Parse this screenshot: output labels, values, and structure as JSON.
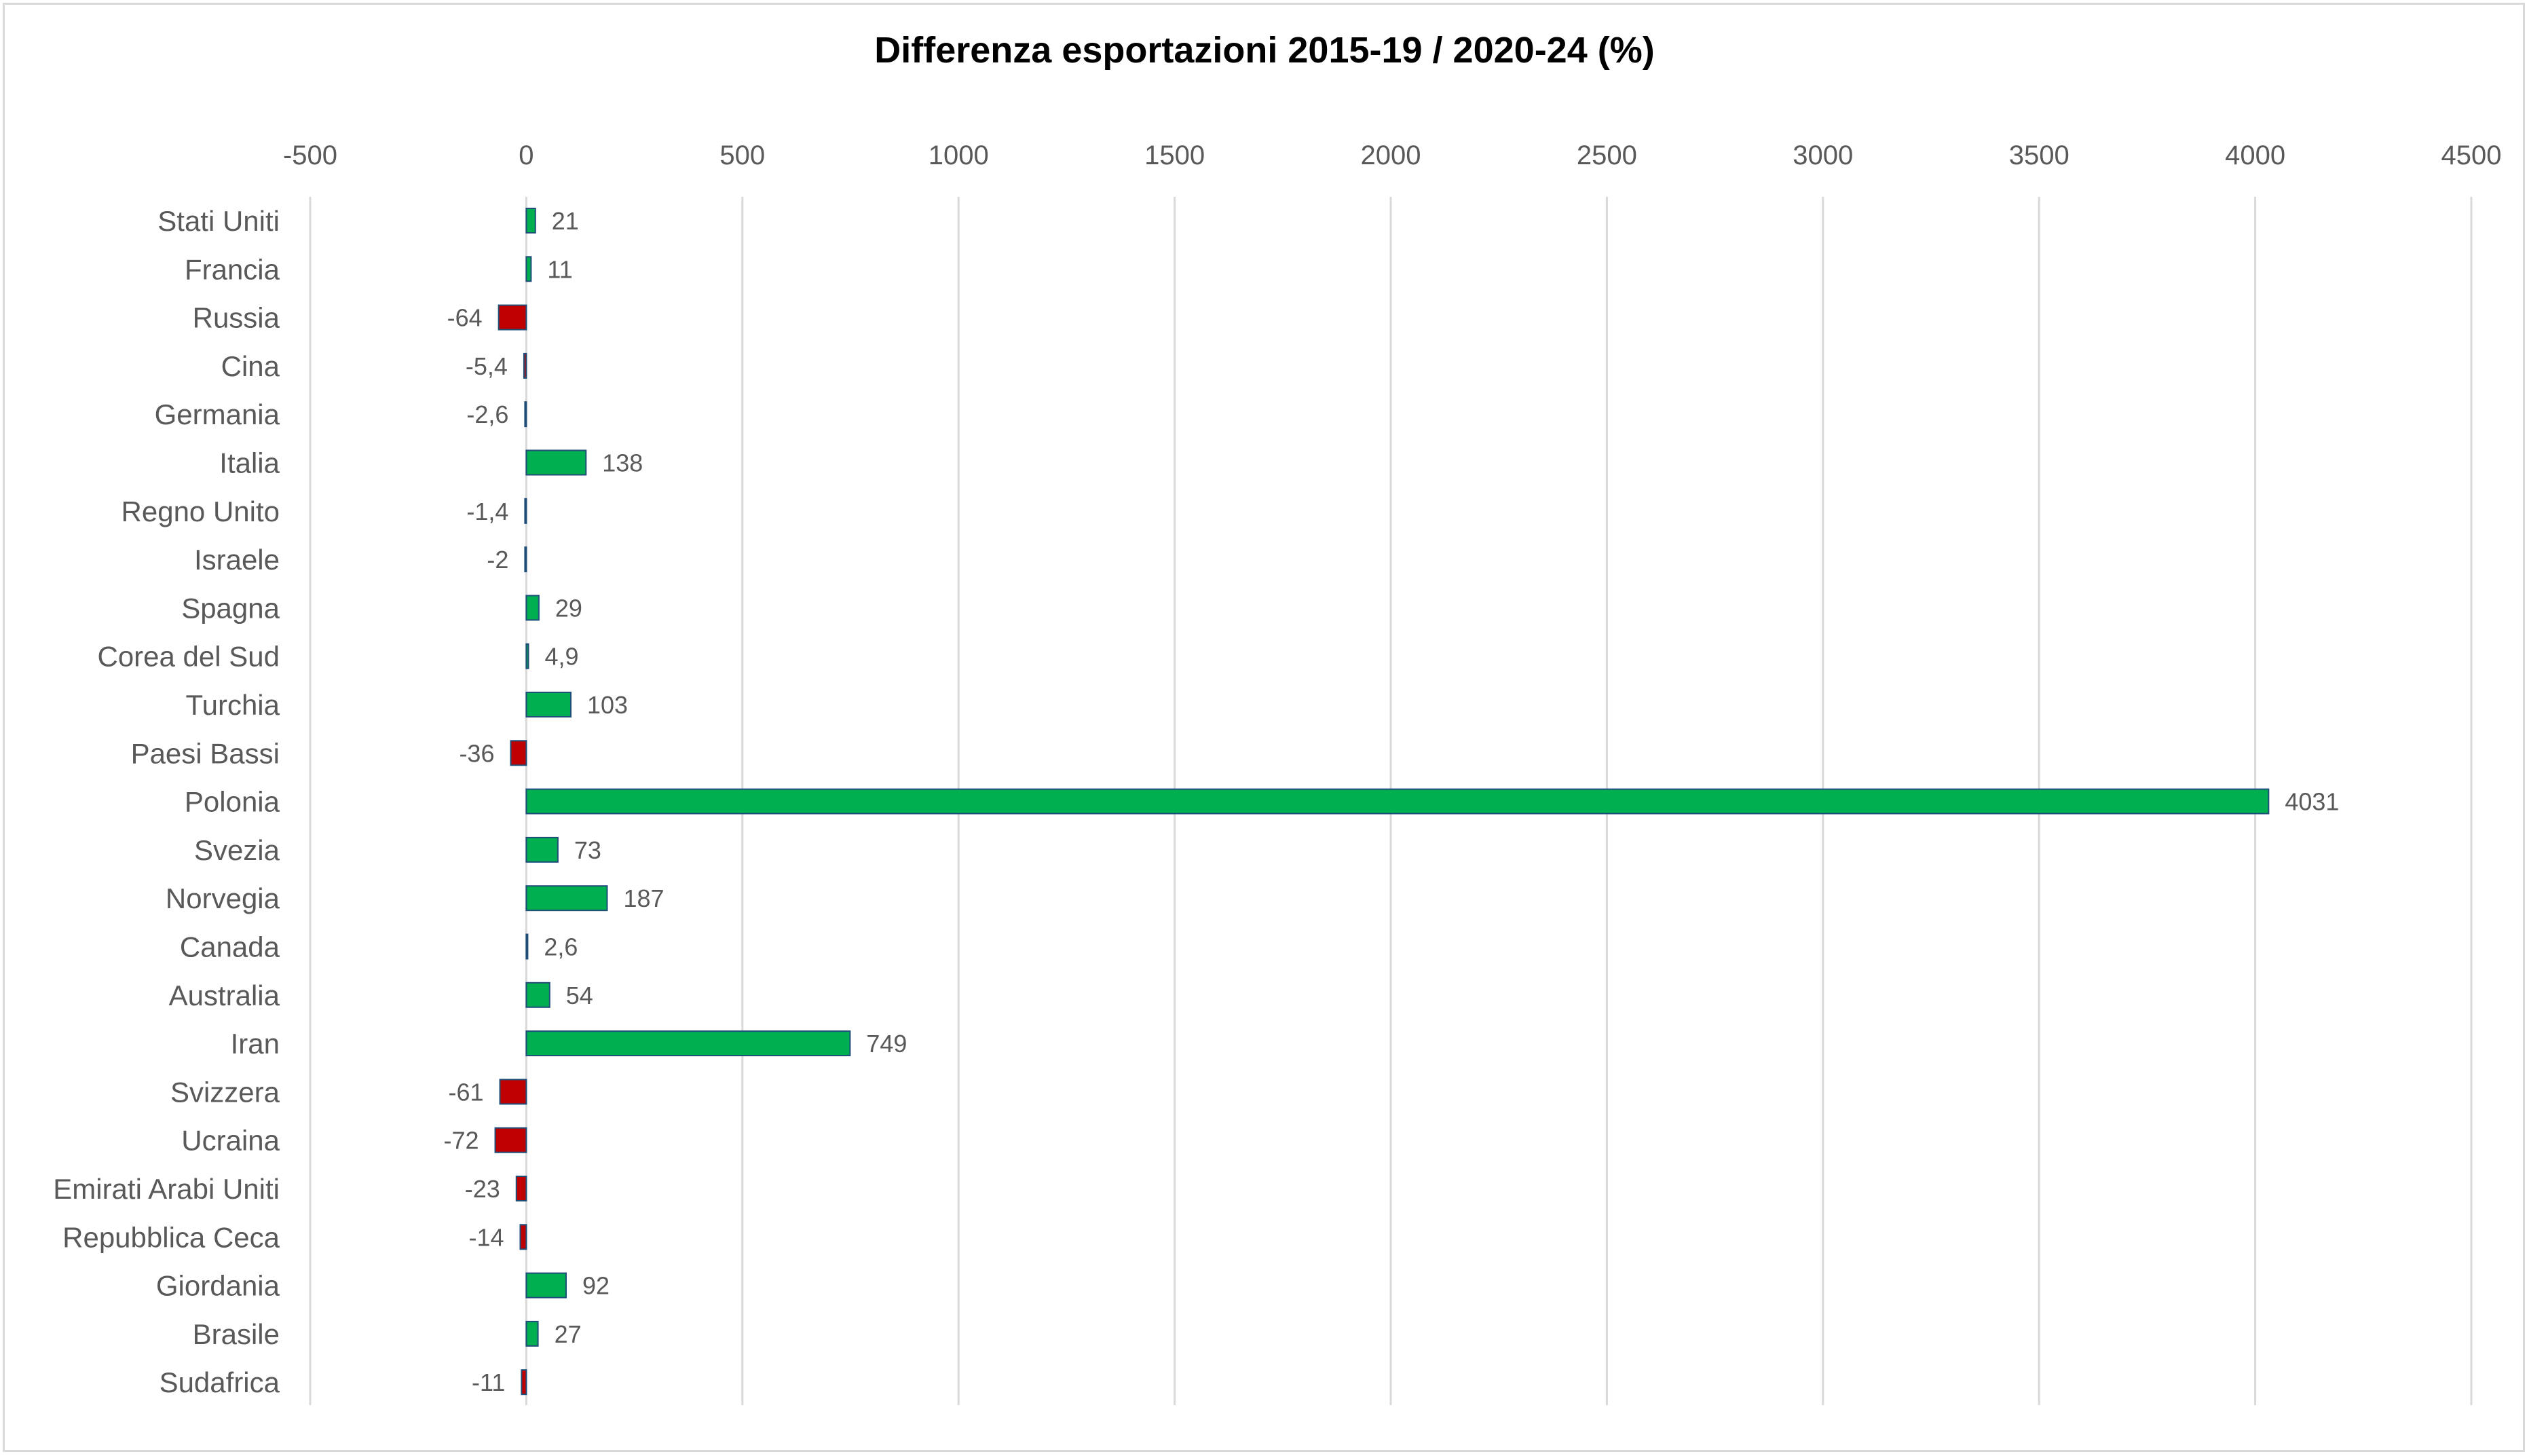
{
  "chart_data": {
    "type": "bar",
    "orientation": "horizontal",
    "title": "Differenza esportazioni 2015-19 / 2020-24 (%)",
    "xlabel": "",
    "ylabel": "",
    "xlim": [
      -500,
      4500
    ],
    "x_ticks": [
      -500,
      0,
      500,
      1000,
      1500,
      2000,
      2500,
      3000,
      3500,
      4000,
      4500
    ],
    "x_axis_position": "top",
    "grid": true,
    "legend": "none",
    "positive_color": "#00b050",
    "negative_color": "#c00000",
    "bar_border_color": "#1f4e79",
    "categories": [
      "Stati Uniti",
      "Francia",
      "Russia",
      "Cina",
      "Germania",
      "Italia",
      "Regno Unito",
      "Israele",
      "Spagna",
      "Corea del Sud",
      "Turchia",
      "Paesi Bassi",
      "Polonia",
      "Svezia",
      "Norvegia",
      "Canada",
      "Australia",
      "Iran",
      "Svizzera",
      "Ucraina",
      "Emirati Arabi Uniti",
      "Repubblica Ceca",
      "Giordania",
      "Brasile",
      "Sudafrica"
    ],
    "values": [
      21,
      11,
      -64,
      -5.4,
      -2.6,
      138,
      -1.4,
      -2,
      29,
      4.9,
      103,
      -36,
      4031,
      73,
      187,
      2.6,
      54,
      749,
      -61,
      -72,
      -23,
      -14,
      92,
      27,
      -11
    ],
    "data_labels": [
      "21",
      "11",
      "-64",
      "-5,4",
      "-2,6",
      "138",
      "-1,4",
      "-2",
      "29",
      "4,9",
      "103",
      "-36",
      "4031",
      "73",
      "187",
      "2,6",
      "54",
      "749",
      "-61",
      "-72",
      "-23",
      "-14",
      "92",
      "27",
      "-11"
    ]
  }
}
